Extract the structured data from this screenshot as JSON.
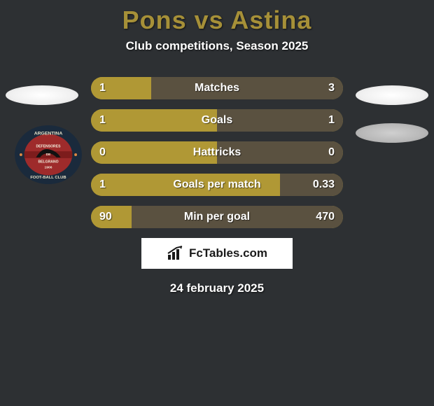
{
  "title": "Pons vs Astina",
  "title_color": "#a69038",
  "subtitle": "Club competitions, Season 2025",
  "background_color": "#2d3033",
  "row_width": 360,
  "rows": [
    {
      "label": "Matches",
      "left": "1",
      "right": "3",
      "left_fill_pct": 24,
      "right_fill_pct": 76
    },
    {
      "label": "Goals",
      "left": "1",
      "right": "1",
      "left_fill_pct": 50,
      "right_fill_pct": 50
    },
    {
      "label": "Hattricks",
      "left": "0",
      "right": "0",
      "left_fill_pct": 50,
      "right_fill_pct": 50
    },
    {
      "label": "Goals per match",
      "left": "1",
      "right": "0.33",
      "left_fill_pct": 75,
      "right_fill_pct": 25
    },
    {
      "label": "Min per goal",
      "left": "90",
      "right": "470",
      "left_fill_pct": 16,
      "right_fill_pct": 84
    }
  ],
  "bar_base_color": "#a99233",
  "bar_left_fill_color": "#b09835",
  "bar_right_fill_color": "#5a5140",
  "brand": "FcTables.com",
  "date": "24 february 2025",
  "crest": {
    "outer_ring": "#1a2a3c",
    "inner_bg": "#9e2b2b",
    "inner_stripe": "#8a1f1f",
    "text_top": "DEFENSORES",
    "text_mid": "DE",
    "text_bot": "BELGRANO",
    "year": "1906",
    "country": "ARGENTINA"
  }
}
